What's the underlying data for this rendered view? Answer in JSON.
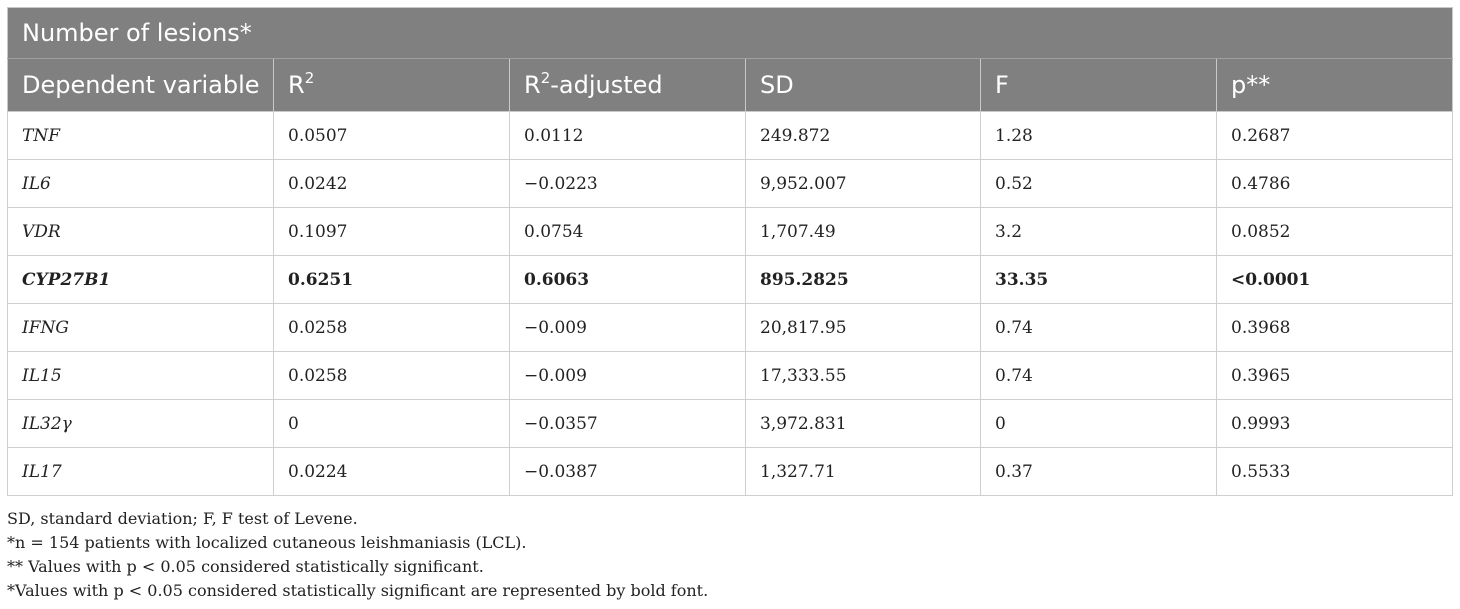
{
  "table": {
    "title": "Number of lesions*",
    "headers": {
      "dependent_variable": "Dependent variable",
      "r2_base": "R",
      "r2_sup": "2",
      "r2adj_base": "R",
      "r2adj_sup": "2",
      "r2adj_suffix": "-adjusted",
      "sd": "SD",
      "f": "F",
      "p": "p**"
    },
    "rows": [
      {
        "variable": "TNF",
        "r2": "0.0507",
        "r2_adjusted": "0.0112",
        "sd": "249.872",
        "f": "1.28",
        "p": "0.2687"
      },
      {
        "variable": "IL6",
        "r2": "0.0242",
        "r2_adjusted": "−0.0223",
        "sd": "9,952.007",
        "f": "0.52",
        "p": "0.4786"
      },
      {
        "variable": "VDR",
        "r2": "0.1097",
        "r2_adjusted": "0.0754",
        "sd": "1,707.49",
        "f": "3.2",
        "p": "0.0852"
      },
      {
        "variable": "CYP27B1",
        "r2": "0.6251",
        "r2_adjusted": "0.6063",
        "sd": "895.2825",
        "f": "33.35",
        "p": "<0.0001"
      },
      {
        "variable": "IFNG",
        "r2": "0.0258",
        "r2_adjusted": "−0.009",
        "sd": "20,817.95",
        "f": "0.74",
        "p": "0.3968"
      },
      {
        "variable": "IL15",
        "r2": "0.0258",
        "r2_adjusted": "−0.009",
        "sd": "17,333.55",
        "f": "0.74",
        "p": "0.3965"
      },
      {
        "variable": "IL32γ",
        "r2": "0",
        "r2_adjusted": "−0.0357",
        "sd": "3,972.831",
        "f": "0",
        "p": "0.9993"
      },
      {
        "variable": "IL17",
        "r2": "0.0224",
        "r2_adjusted": "−0.0387",
        "sd": "1,327.71",
        "f": "0.37",
        "p": "0.5533"
      }
    ]
  },
  "footnotes": [
    "SD, standard deviation; F, F test of Levene.",
    "*n = 154 patients with localized cutaneous leishmaniasis (LCL).",
    "** Values with p < 0.05 considered statistically significant.",
    "*Values with p < 0.05 considered statistically significant are represented by bold font."
  ]
}
